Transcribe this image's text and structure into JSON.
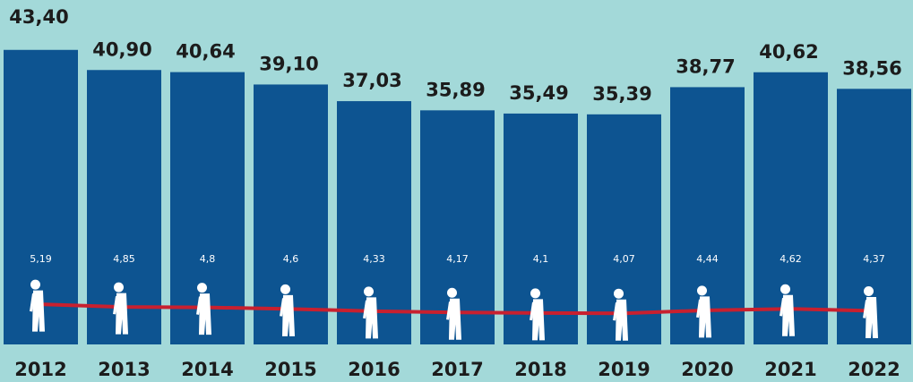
{
  "chart_data": {
    "type": "bar",
    "categories": [
      "2012",
      "2013",
      "2014",
      "2015",
      "2016",
      "2017",
      "2018",
      "2019",
      "2020",
      "2021",
      "2022"
    ],
    "series": [
      {
        "type": "bar",
        "color": "#0d5491",
        "values": [
          43.4,
          40.9,
          40.64,
          39.1,
          37.03,
          35.89,
          35.49,
          35.39,
          38.77,
          40.62,
          38.56
        ],
        "value_labels": [
          "43,40",
          "40,90",
          "40,64",
          "39,10",
          "37,03",
          "35,89",
          "35,49",
          "35,39",
          "38,77",
          "40,62",
          "38,56"
        ]
      },
      {
        "type": "line",
        "color": "#c8202f",
        "axis": "y2",
        "values": [
          5.19,
          4.85,
          4.8,
          4.6,
          4.33,
          4.17,
          4.1,
          4.07,
          4.44,
          4.62,
          4.37
        ],
        "value_labels": [
          "5,19",
          "4,85",
          "4,8",
          "4,6",
          "4,33",
          "4,17",
          "4,1",
          "4,07",
          "4,44",
          "4,62",
          "4,37"
        ]
      }
    ],
    "ylim": [
      6.8,
      49.6
    ],
    "y2lim": [
      0.2,
      43
    ]
  }
}
